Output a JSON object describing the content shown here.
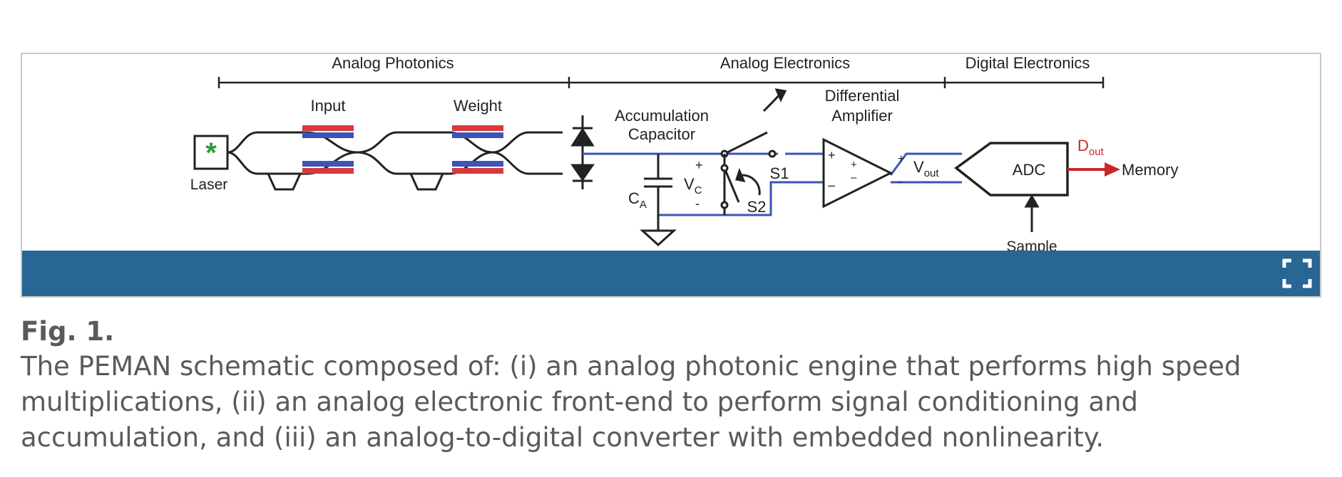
{
  "figure": {
    "sections": {
      "analog_photonics": "Analog Photonics",
      "analog_electronics": "Analog Electronics",
      "digital_electronics": "Digital Electronics"
    },
    "labels": {
      "input": "Input",
      "weight": "Weight",
      "laser": "Laser",
      "accumulation_line1": "Accumulation",
      "accumulation_line2": "Capacitor",
      "diff_amp_line1": "Differential",
      "diff_amp_line2": "Amplifier",
      "switch1": "S1",
      "switch2": "S2",
      "cap_name": "C",
      "cap_sub": "A",
      "vc_name": "V",
      "vc_sub": "C",
      "vout_name": "V",
      "vout_sub": "out",
      "adc": "ADC",
      "dout_name": "D",
      "dout_sub": "out",
      "memory": "Memory",
      "sample": "Sample"
    },
    "colors": {
      "waveguide_red": "#d63a3a",
      "waveguide_blue": "#3a55b8",
      "wire_blue": "#3a55b8",
      "dout_arrow": "#c8282a",
      "laser_star": "#2e9a3a"
    }
  },
  "caption": {
    "label": "Fig. 1.",
    "text": "The PEMAN schematic composed of: (i) an analog photonic engine that performs high speed multiplications, (ii) an analog electronic front-end to perform signal conditioning and accumulation, and (iii) an analog-to-digital converter with embedded nonlinearity."
  }
}
